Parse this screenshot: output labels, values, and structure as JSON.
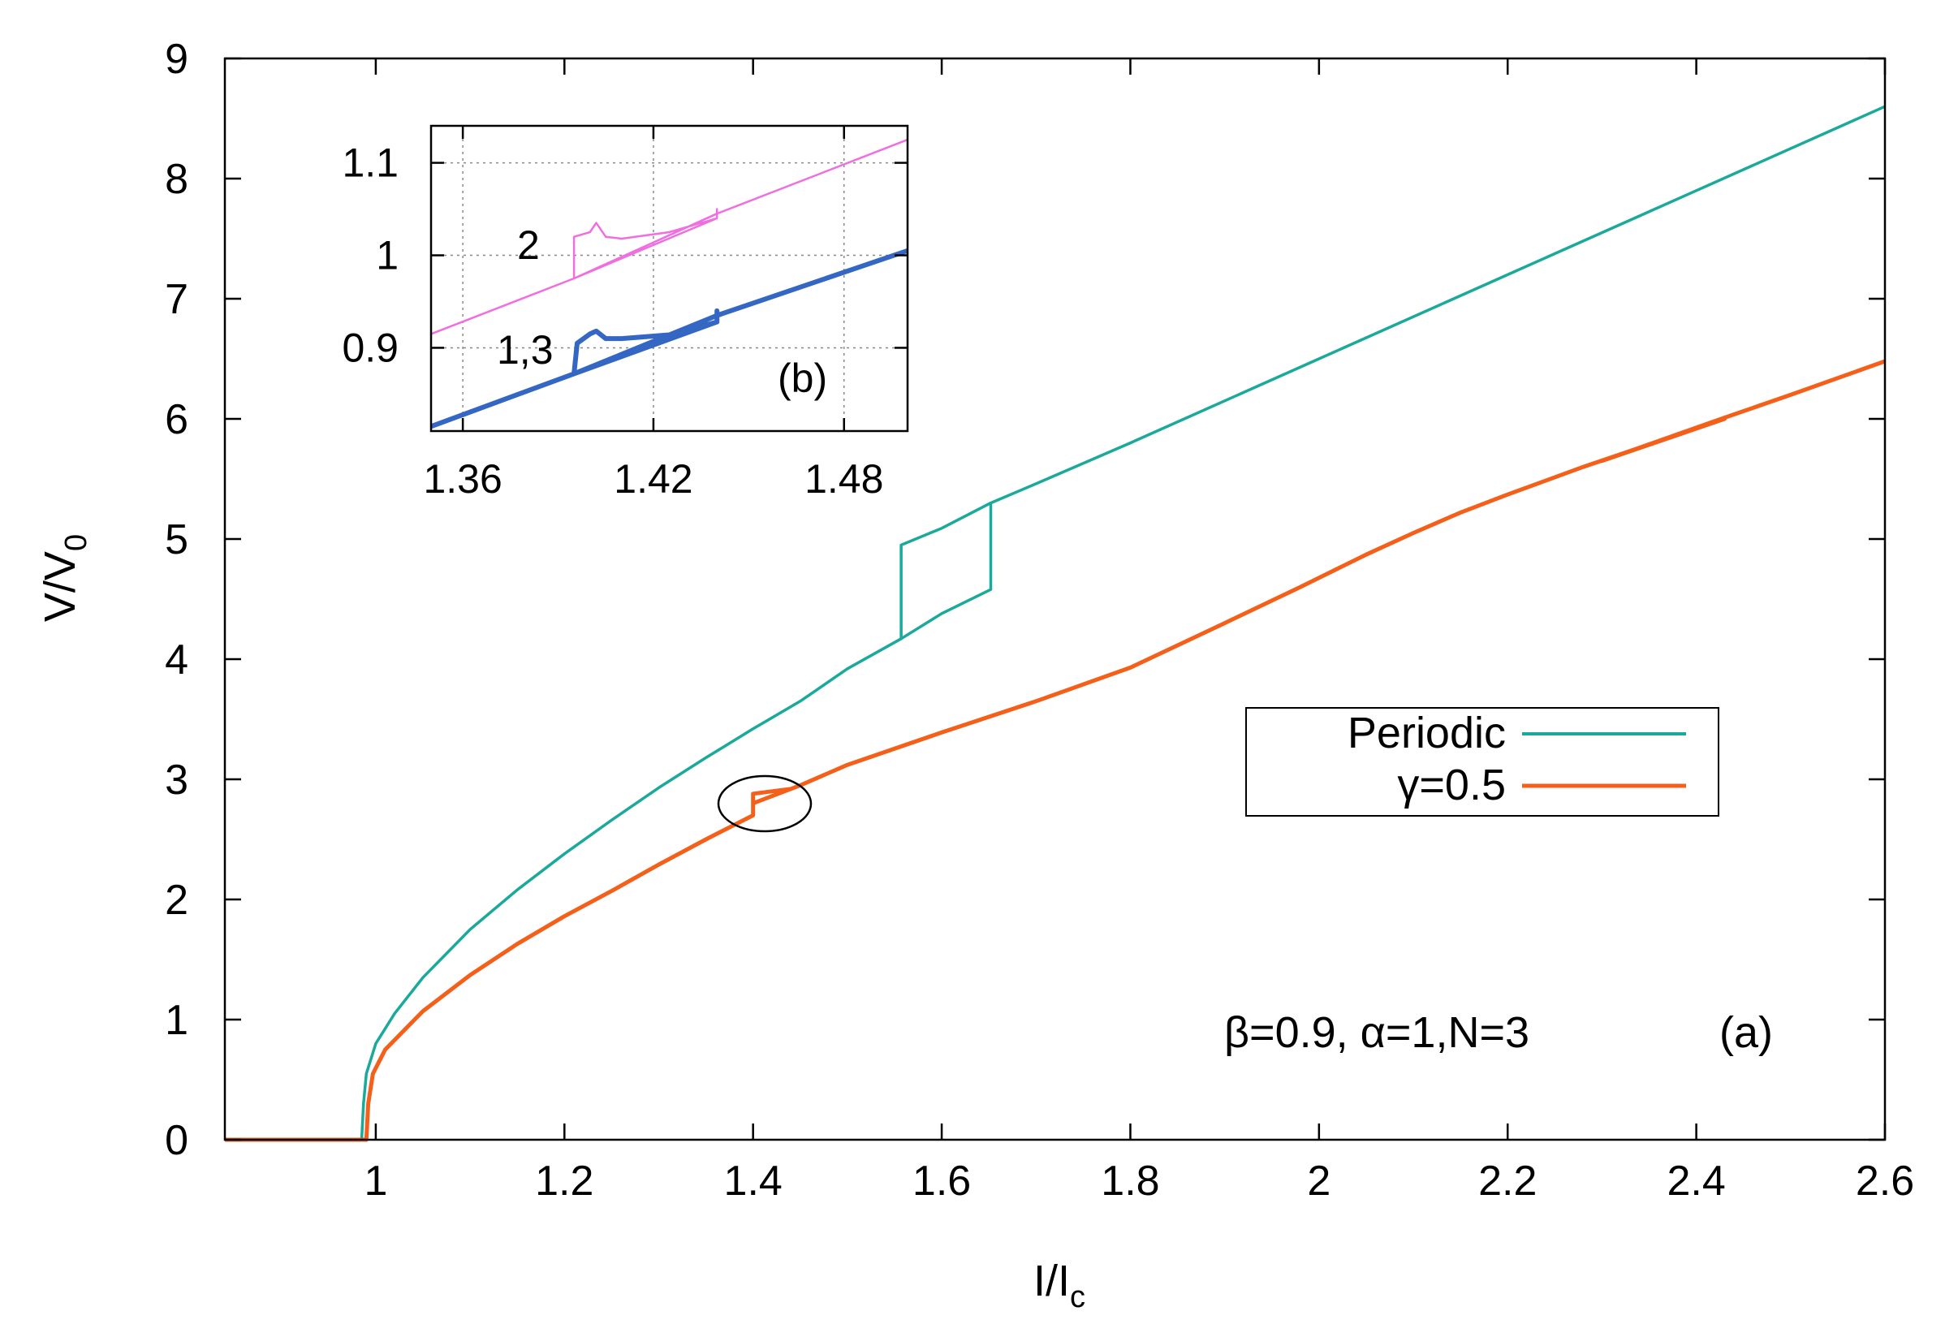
{
  "chart_data": [
    {
      "type": "line",
      "panel_label": "(a)",
      "xlabel": {
        "main": "I/I",
        "sub": "c"
      },
      "ylabel": {
        "main": "V/V",
        "sub": "0"
      },
      "xlim": [
        0.84,
        2.6
      ],
      "ylim": [
        0,
        9
      ],
      "x_ticks": [
        1,
        1.2,
        1.4,
        1.6,
        1.8,
        2,
        2.2,
        2.4,
        2.6
      ],
      "x_tick_labels": [
        "1",
        "1.2",
        "1.4",
        "1.6",
        "1.8",
        "2",
        "2.2",
        "2.4",
        "2.6"
      ],
      "y_ticks": [
        0,
        1,
        2,
        3,
        4,
        5,
        6,
        7,
        8,
        9
      ],
      "y_tick_labels": [
        "0",
        "1",
        "2",
        "3",
        "4",
        "5",
        "6",
        "7",
        "8",
        "9"
      ],
      "grid": false,
      "annotation": "β=0.9, α=1,N=3",
      "legend": {
        "placement": "center-right",
        "entries": [
          "Periodic",
          "γ=0.5"
        ]
      },
      "series": [
        {
          "name": "Periodic",
          "color": "#1aa99a",
          "points": [
            [
              0.84,
              0
            ],
            [
              0.985,
              0
            ],
            [
              0.987,
              0.3
            ],
            [
              0.99,
              0.55
            ],
            [
              1.0,
              0.8
            ],
            [
              1.02,
              1.05
            ],
            [
              1.05,
              1.35
            ],
            [
              1.1,
              1.75
            ],
            [
              1.15,
              2.08
            ],
            [
              1.2,
              2.38
            ],
            [
              1.25,
              2.66
            ],
            [
              1.3,
              2.93
            ],
            [
              1.35,
              3.18
            ],
            [
              1.4,
              3.42
            ],
            [
              1.45,
              3.65
            ],
            [
              1.5,
              3.92
            ],
            [
              1.557,
              4.17
            ],
            [
              1.557,
              4.95
            ],
            [
              1.6,
              5.09
            ],
            [
              1.652,
              5.3
            ],
            [
              1.652,
              4.58
            ],
            [
              1.6,
              4.38
            ],
            [
              1.557,
              4.17
            ],
            [
              1.6,
              4.38
            ],
            [
              1.652,
              4.58
            ],
            [
              1.652,
              5.3
            ],
            [
              1.7,
              5.46
            ],
            [
              1.8,
              5.8
            ],
            [
              2.0,
              6.5
            ],
            [
              2.2,
              7.2
            ],
            [
              2.4,
              7.9
            ],
            [
              2.6,
              8.6
            ]
          ]
        },
        {
          "name": "γ=0.5",
          "color": "#f4601a",
          "points": [
            [
              0.84,
              0
            ],
            [
              0.99,
              0
            ],
            [
              0.992,
              0.3
            ],
            [
              0.997,
              0.55
            ],
            [
              1.01,
              0.75
            ],
            [
              1.05,
              1.07
            ],
            [
              1.1,
              1.37
            ],
            [
              1.15,
              1.63
            ],
            [
              1.2,
              1.86
            ],
            [
              1.25,
              2.07
            ],
            [
              1.3,
              2.29
            ],
            [
              1.35,
              2.5
            ],
            [
              1.4,
              2.7
            ],
            [
              1.4,
              2.88
            ],
            [
              1.44,
              2.92
            ],
            [
              1.4,
              2.8
            ],
            [
              1.45,
              2.95
            ],
            [
              1.5,
              3.12
            ],
            [
              1.6,
              3.39
            ],
            [
              1.7,
              3.65
            ],
            [
              1.8,
              3.93
            ],
            [
              1.9,
              4.3
            ],
            [
              1.98,
              4.6
            ],
            [
              2.05,
              4.87
            ],
            [
              2.1,
              5.05
            ],
            [
              2.15,
              5.22
            ],
            [
              2.2,
              5.37
            ],
            [
              2.28,
              5.6
            ],
            [
              2.43,
              6.0
            ],
            [
              2.3,
              5.65
            ],
            [
              2.43,
              6.01
            ],
            [
              2.5,
              6.2
            ],
            [
              2.6,
              6.48
            ]
          ]
        }
      ]
    },
    {
      "type": "line",
      "panel_label": "(b)",
      "xlim": [
        1.35,
        1.5
      ],
      "ylim": [
        0.81,
        1.14
      ],
      "x_ticks": [
        1.36,
        1.42,
        1.48
      ],
      "x_tick_labels": [
        "1.36",
        "1.42",
        "1.48"
      ],
      "y_ticks": [
        0.9,
        1.0,
        1.1
      ],
      "y_tick_labels": [
        "0.9",
        "1",
        "1.1"
      ],
      "grid": true,
      "series": [
        {
          "name": "2",
          "color": "#ef6fe0",
          "points": [
            [
              1.35,
              0.915
            ],
            [
              1.395,
              0.975
            ],
            [
              1.395,
              1.02
            ],
            [
              1.4,
              1.025
            ],
            [
              1.402,
              1.035
            ],
            [
              1.405,
              1.02
            ],
            [
              1.41,
              1.018
            ],
            [
              1.425,
              1.025
            ],
            [
              1.44,
              1.04
            ],
            [
              1.44,
              1.05
            ],
            [
              1.44,
              1.04
            ],
            [
              1.395,
              0.975
            ],
            [
              1.44,
              1.045
            ],
            [
              1.5,
              1.125
            ]
          ]
        },
        {
          "name": "1,3",
          "color": "#3466c4",
          "points": [
            [
              1.35,
              0.815
            ],
            [
              1.395,
              0.872
            ],
            [
              1.396,
              0.905
            ],
            [
              1.4,
              0.915
            ],
            [
              1.402,
              0.918
            ],
            [
              1.405,
              0.91
            ],
            [
              1.41,
              0.91
            ],
            [
              1.425,
              0.914
            ],
            [
              1.44,
              0.928
            ],
            [
              1.44,
              0.94
            ],
            [
              1.44,
              0.928
            ],
            [
              1.395,
              0.872
            ],
            [
              1.44,
              0.935
            ],
            [
              1.5,
              1.005
            ]
          ]
        }
      ]
    }
  ]
}
